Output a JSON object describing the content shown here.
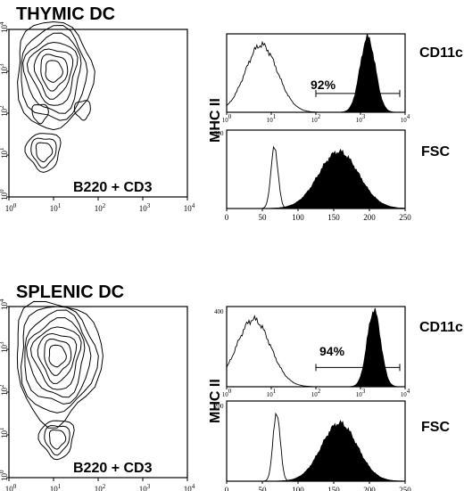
{
  "chart_data": [
    {
      "type": "contour",
      "panel": "thymic-contour",
      "title": "THYMIC  DC",
      "xlabel": "B220 + CD3",
      "ylabel": "MHC II",
      "x_scale": "log",
      "y_scale": "log",
      "xlim": [
        1,
        10000
      ],
      "ylim": [
        1,
        10000
      ],
      "x_ticks": [
        {
          "base": "10",
          "exp": "0"
        },
        {
          "base": "10",
          "exp": "1"
        },
        {
          "base": "10",
          "exp": "2"
        },
        {
          "base": "10",
          "exp": "3"
        },
        {
          "base": "10",
          "exp": "4"
        }
      ],
      "y_ticks": [
        {
          "base": "10",
          "exp": "0"
        },
        {
          "base": "10",
          "exp": "1"
        },
        {
          "base": "10",
          "exp": "2"
        },
        {
          "base": "10",
          "exp": "3"
        },
        {
          "base": "10",
          "exp": "4"
        }
      ],
      "populations": [
        {
          "x": 10,
          "y": 1000,
          "rings": 7
        },
        {
          "x": 6,
          "y": 12,
          "rings": 3
        },
        {
          "x": 5,
          "y": 100,
          "rings": 1
        },
        {
          "x": 45,
          "y": 120,
          "rings": 1
        }
      ]
    },
    {
      "type": "histogram",
      "panel": "thymic-cd11c",
      "label": "CD11c",
      "x_scale": "log",
      "xlim": [
        1,
        10000
      ],
      "ymax": "",
      "x_ticks": [
        {
          "base": "10",
          "exp": "0"
        },
        {
          "base": "10",
          "exp": "1"
        },
        {
          "base": "10",
          "exp": "2"
        },
        {
          "base": "10",
          "exp": "3"
        },
        {
          "base": "10",
          "exp": "4"
        }
      ],
      "series": [
        {
          "style": "open",
          "peak_x": 6,
          "peak_height": 0.86,
          "spread_decades": 0.36
        },
        {
          "style": "filled",
          "peak_x": 1450,
          "peak_height": 0.95,
          "spread_decades": 0.17
        }
      ],
      "gate": {
        "range": [
          100,
          10000
        ],
        "percent": "92%"
      }
    },
    {
      "type": "histogram",
      "panel": "thymic-fsc",
      "label": "FSC",
      "x_scale": "linear",
      "xlim": [
        0,
        250
      ],
      "ymax": "300",
      "x_ticks": [
        "0",
        "50",
        "100",
        "150",
        "200",
        "250"
      ],
      "series": [
        {
          "style": "open",
          "peak_x": 67,
          "peak_height": 0.78,
          "spread": 5
        },
        {
          "style": "filled",
          "peak_x": 157,
          "peak_height": 0.72,
          "spread": 28
        }
      ]
    },
    {
      "type": "contour",
      "panel": "splenic-contour",
      "title": "SPLENIC  DC",
      "xlabel": "B220 + CD3",
      "ylabel": "MHC II",
      "x_scale": "log",
      "y_scale": "log",
      "xlim": [
        1,
        10000
      ],
      "ylim": [
        1,
        10000
      ],
      "x_ticks": [
        {
          "base": "10",
          "exp": "0"
        },
        {
          "base": "10",
          "exp": "1"
        },
        {
          "base": "10",
          "exp": "2"
        },
        {
          "base": "10",
          "exp": "3"
        },
        {
          "base": "10",
          "exp": "4"
        }
      ],
      "y_ticks": [
        {
          "base": "10",
          "exp": "0"
        },
        {
          "base": "10",
          "exp": "1"
        },
        {
          "base": "10",
          "exp": "2"
        },
        {
          "base": "10",
          "exp": "3"
        },
        {
          "base": "10",
          "exp": "4"
        }
      ],
      "populations": [
        {
          "x": 12,
          "y": 700,
          "rings": 8
        },
        {
          "x": 12,
          "y": 8,
          "rings": 3
        }
      ]
    },
    {
      "type": "histogram",
      "panel": "splenic-cd11c",
      "label": "CD11c",
      "x_scale": "log",
      "xlim": [
        1,
        10000
      ],
      "ymax": "400",
      "x_ticks": [
        {
          "base": "10",
          "exp": "0"
        },
        {
          "base": "10",
          "exp": "1"
        },
        {
          "base": "10",
          "exp": "2"
        },
        {
          "base": "10",
          "exp": "3"
        },
        {
          "base": "10",
          "exp": "4"
        }
      ],
      "series": [
        {
          "style": "open",
          "peak_x": 4,
          "peak_height": 0.84,
          "spread_decades": 0.38
        },
        {
          "style": "filled",
          "peak_x": 2000,
          "peak_height": 0.95,
          "spread_decades": 0.15
        }
      ],
      "gate": {
        "range": [
          100,
          10000
        ],
        "percent": "94%"
      }
    },
    {
      "type": "histogram",
      "panel": "splenic-fsc",
      "label": "FSC",
      "x_scale": "linear",
      "xlim": [
        0,
        250
      ],
      "ymax": "200",
      "x_ticks": [
        "0",
        "50",
        "100",
        "150",
        "200",
        "250"
      ],
      "series": [
        {
          "style": "open",
          "peak_x": 70,
          "peak_height": 0.86,
          "spread": 5
        },
        {
          "style": "filled",
          "peak_x": 158,
          "peak_height": 0.72,
          "spread": 25
        }
      ]
    }
  ]
}
